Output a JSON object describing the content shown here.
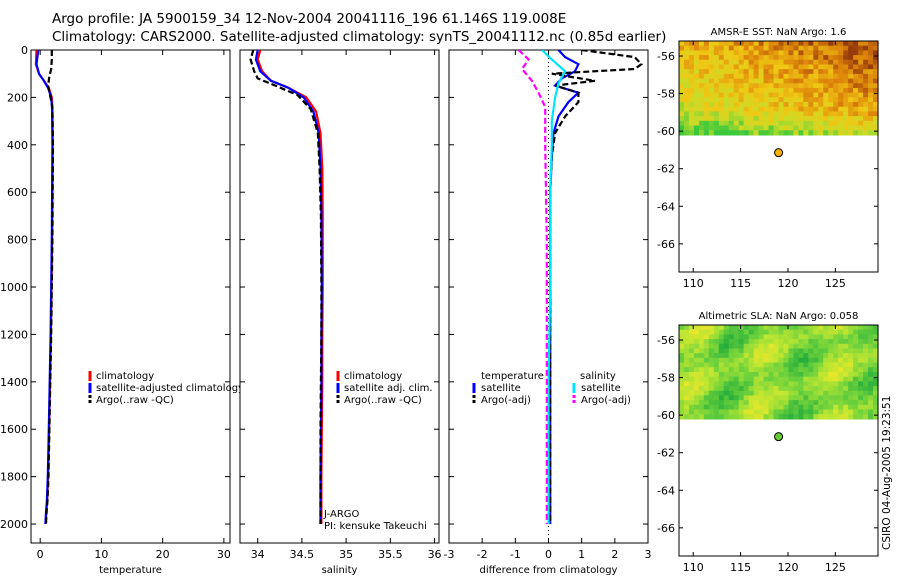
{
  "header": {
    "title_line1": "Argo profile: JA 5900159_34 12-Nov-2004 20041116_196 61.146S 119.008E",
    "title_line2": "Climatology: CARS2000. Satellite-adjusted climatology: synTS_20041112.nc (0.85d earlier)"
  },
  "footer": {
    "stamp": "CSIRO 04-Aug-2005 19:23:51"
  },
  "colors": {
    "climatology": "#ff0000",
    "satellite": "#0000ff",
    "argo": "#000000",
    "salinity_satellite": "#00e5ff",
    "salinity_argo": "#ff00ff"
  },
  "chart_data": [
    {
      "id": "temperature",
      "type": "line",
      "xlabel": "temperature",
      "ylabel": "",
      "xlim": [
        -1.5,
        31
      ],
      "ylim": [
        2080,
        0
      ],
      "xticks": [
        0,
        10,
        20,
        30
      ],
      "xticklabels": [
        "0",
        "10",
        "20",
        "30"
      ],
      "yticks": [
        0,
        200,
        400,
        600,
        800,
        1000,
        1200,
        1400,
        1600,
        1800,
        2000
      ],
      "yticklabels": [
        "0",
        "200",
        "400",
        "600",
        "800",
        "1000",
        "1200",
        "1400",
        "1600",
        "1800",
        "2000"
      ],
      "series": [
        {
          "name": "climatology",
          "color": "#ff0000",
          "dash": "",
          "x": [
            -0.6,
            -0.7,
            -0.2,
            0.6,
            1.4,
            1.9,
            2.0,
            2.05,
            2.0,
            1.95,
            1.85,
            1.75,
            1.6,
            1.45,
            1.3,
            1.15,
            1.0,
            0.9
          ],
          "y": [
            0,
            60,
            100,
            130,
            160,
            200,
            250,
            400,
            600,
            800,
            1000,
            1200,
            1400,
            1600,
            1800,
            1900,
            1950,
            2000
          ]
        },
        {
          "name": "satellite-adjusted climatology",
          "color": "#0000ff",
          "dash": "",
          "x": [
            -0.3,
            -0.6,
            -0.2,
            0.6,
            1.3,
            1.8,
            1.95,
            2.0,
            1.95,
            1.9,
            1.8,
            1.7,
            1.55,
            1.4,
            1.25,
            1.1,
            0.95,
            0.85
          ],
          "y": [
            0,
            60,
            100,
            130,
            160,
            200,
            250,
            400,
            600,
            800,
            1000,
            1200,
            1400,
            1600,
            1800,
            1900,
            1950,
            2000
          ]
        },
        {
          "name": "Argo(..raw -QC)",
          "color": "#000000",
          "dash": "6 3",
          "x": [
            1.9,
            1.9,
            1.8,
            1.5,
            1.3,
            1.6,
            2.0,
            2.1,
            2.05,
            2.0,
            1.9,
            1.8,
            1.65,
            1.5,
            1.35,
            1.2,
            1.05,
            0.95
          ],
          "y": [
            0,
            40,
            80,
            110,
            150,
            190,
            240,
            400,
            600,
            800,
            1000,
            1200,
            1400,
            1600,
            1800,
            1900,
            1950,
            2000
          ]
        }
      ],
      "legend": [
        "climatology",
        "satellite-adjusted climatology",
        "Argo(..raw -QC)"
      ]
    },
    {
      "id": "salinity",
      "type": "line",
      "xlabel": "salinity",
      "ylabel": "",
      "xlim": [
        33.8,
        36.05
      ],
      "ylim": [
        2080,
        0
      ],
      "xticks": [
        34,
        34.5,
        35,
        35.5,
        36
      ],
      "xticklabels": [
        "34",
        "34.5",
        "35",
        "35.5",
        "36"
      ],
      "yticks": [
        0,
        200,
        400,
        600,
        800,
        1000,
        1200,
        1400,
        1600,
        1800,
        2000
      ],
      "series": [
        {
          "name": "climatology",
          "color": "#ff0000",
          "dash": "",
          "x": [
            34.03,
            34.0,
            34.05,
            34.15,
            34.35,
            34.55,
            34.66,
            34.71,
            34.73,
            34.735,
            34.735,
            34.73,
            34.73,
            34.725,
            34.72,
            34.72
          ],
          "y": [
            0,
            40,
            90,
            130,
            160,
            200,
            260,
            350,
            500,
            700,
            1000,
            1200,
            1400,
            1600,
            1800,
            2000
          ]
        },
        {
          "name": "satellite adj. clim.",
          "color": "#0000ff",
          "dash": "",
          "x": [
            34.0,
            33.98,
            34.03,
            34.15,
            34.35,
            34.52,
            34.63,
            34.69,
            34.71,
            34.72,
            34.725,
            34.72,
            34.72,
            34.715,
            34.71,
            34.71
          ],
          "y": [
            0,
            40,
            90,
            130,
            160,
            200,
            260,
            350,
            500,
            700,
            1000,
            1200,
            1400,
            1600,
            1800,
            2000
          ]
        },
        {
          "name": "Argo(..raw -QC)",
          "color": "#000000",
          "dash": "6 3",
          "x": [
            33.95,
            33.92,
            33.96,
            34.0,
            34.2,
            34.45,
            34.6,
            34.68,
            34.7,
            34.715,
            34.72,
            34.72,
            34.715,
            34.71,
            34.71,
            34.71
          ],
          "y": [
            0,
            40,
            90,
            120,
            150,
            190,
            250,
            350,
            500,
            700,
            1000,
            1200,
            1400,
            1600,
            1800,
            2000
          ]
        }
      ],
      "legend": [
        "climatology",
        "satellite adj. clim.",
        "Argo(..raw -QC)"
      ],
      "annotation": [
        "J-ARGO",
        "PI: kensuke Takeuchi"
      ]
    },
    {
      "id": "difference",
      "type": "line",
      "xlabel": "difference from climatology",
      "ylabel": "",
      "xlim": [
        -3,
        3
      ],
      "ylim": [
        2080,
        0
      ],
      "xticks": [
        -3,
        -2,
        -1,
        0,
        1,
        2,
        3
      ],
      "xticklabels": [
        "-3",
        "-2",
        "-1",
        "0",
        "1",
        "2",
        "3"
      ],
      "yticks": [
        0,
        200,
        400,
        600,
        800,
        1000,
        1200,
        1400,
        1600,
        1800,
        2000
      ],
      "series": [
        {
          "name": "temperature satellite",
          "color": "#0000ff",
          "dash": "",
          "x": [
            0.3,
            0.5,
            0.9,
            0.8,
            0.4,
            0.2,
            0.9,
            0.6,
            0.3,
            0.15,
            0.1,
            0.05,
            0.05,
            0.05,
            0.05,
            0.05,
            0.05
          ],
          "y": [
            0,
            30,
            60,
            90,
            120,
            150,
            180,
            220,
            280,
            350,
            450,
            600,
            800,
            1000,
            1400,
            1800,
            2000
          ]
        },
        {
          "name": "temperature Argo(-adj)",
          "color": "#000000",
          "dash": "6 3",
          "x": [
            1.0,
            2.6,
            2.8,
            2.6,
            0.1,
            1.4,
            0.2,
            0.9,
            0.9,
            0.5,
            0.2,
            0.1,
            0.05,
            0.05,
            0.05,
            0.05,
            0.05
          ],
          "y": [
            0,
            30,
            60,
            80,
            100,
            130,
            150,
            180,
            220,
            280,
            350,
            450,
            600,
            800,
            1200,
            1600,
            2000
          ]
        },
        {
          "name": "salinity satellite",
          "color": "#00e5ff",
          "dash": "",
          "x": [
            -0.2,
            0.1,
            0.5,
            0.3,
            0.2,
            0.1,
            0.1,
            0.05,
            0.05,
            0.05,
            0.0,
            0.0,
            0.0
          ],
          "y": [
            0,
            40,
            90,
            140,
            200,
            300,
            400,
            600,
            800,
            1000,
            1400,
            1800,
            2000
          ]
        },
        {
          "name": "salinity Argo(-adj)",
          "color": "#ff00ff",
          "dash": "6 3",
          "x": [
            -0.9,
            -0.6,
            -0.8,
            -0.5,
            -0.3,
            -0.1,
            -0.1,
            -0.05,
            -0.05,
            -0.05,
            -0.05
          ],
          "y": [
            0,
            40,
            80,
            130,
            180,
            240,
            400,
            800,
            1200,
            1600,
            2000
          ]
        }
      ],
      "zero_line": {
        "x": 0,
        "style": "dotted"
      },
      "legend_left_title": "temperature",
      "legend_left": [
        "satellite",
        "Argo(-adj)"
      ],
      "legend_right_title": "salinity",
      "legend_right": [
        "satellite",
        "Argo(-adj)"
      ]
    },
    {
      "id": "sst_map",
      "type": "heatmap",
      "title": "AMSR-E SST: NaN Argo: 1.6",
      "xlim": [
        108.5,
        129.5
      ],
      "ylim": [
        -67.5,
        -55.2
      ],
      "xticks": [
        110,
        115,
        120,
        125
      ],
      "xticklabels": [
        "110",
        "115",
        "120",
        "125"
      ],
      "yticks": [
        -56,
        -58,
        -60,
        -62,
        -64,
        -66
      ],
      "yticklabels": [
        "-56",
        "-58",
        "-60",
        "-62",
        "-64",
        "-66"
      ],
      "data_lat_range": [
        -60.2,
        -55.2
      ],
      "argo_point": {
        "lon": 119.008,
        "lat": -61.146,
        "color": "#ffb000"
      }
    },
    {
      "id": "sla_map",
      "type": "heatmap",
      "title": "Altimetric SLA: NaN Argo: 0.058",
      "xlim": [
        108.5,
        129.5
      ],
      "ylim": [
        -67.5,
        -55.2
      ],
      "xticks": [
        110,
        115,
        120,
        125
      ],
      "xticklabels": [
        "110",
        "115",
        "120",
        "125"
      ],
      "yticks": [
        -56,
        -58,
        -60,
        -62,
        -64,
        -66
      ],
      "yticklabels": [
        "-56",
        "-58",
        "-60",
        "-62",
        "-64",
        "-66"
      ],
      "data_lat_range": [
        -60.2,
        -55.2
      ],
      "argo_point": {
        "lon": 119.008,
        "lat": -61.146,
        "color": "#66cc33"
      }
    }
  ]
}
